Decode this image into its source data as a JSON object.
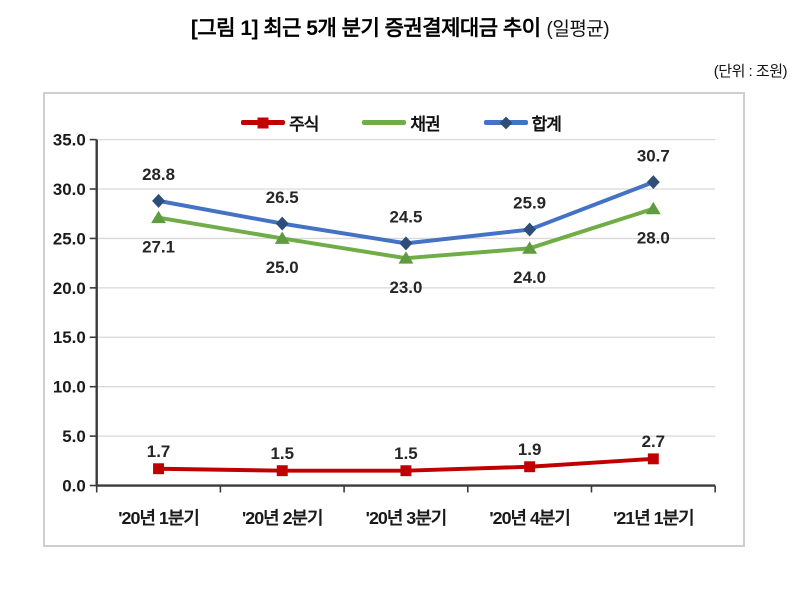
{
  "title": {
    "main": "[그림 1] 최근 5개 분기 증권결제대금 추이",
    "suffix": "(일평균)"
  },
  "unit_label": "(단위 : 조원)",
  "legend": {
    "items": [
      "주식",
      "채권",
      "합계"
    ]
  },
  "chart_data": {
    "type": "line",
    "title": "[그림 1] 최근 5개 분기 증권결제대금 추이 (일평균)",
    "unit": "조원",
    "categories": [
      "'20년 1분기",
      "'20년 2분기",
      "'20년 3분기",
      "'20년 4분기",
      "'21년 1분기"
    ],
    "series": [
      {
        "key": "stocks",
        "name": "주식",
        "values": [
          1.7,
          1.5,
          1.5,
          1.9,
          2.7
        ],
        "color": "#c00000",
        "marker": "square",
        "marker_color": "#c00000",
        "label_position": "above",
        "label_dy": -12,
        "legend_marker": true
      },
      {
        "key": "bonds",
        "name": "채권",
        "values": [
          27.1,
          25.0,
          23.0,
          24.0,
          28.0
        ],
        "color": "#70ad47",
        "marker": "triangle",
        "marker_color": "#5f9c41",
        "label_position": "below",
        "label_dy": 35,
        "legend_marker": false
      },
      {
        "key": "total",
        "name": "합계",
        "values": [
          28.8,
          26.5,
          24.5,
          25.9,
          30.7
        ],
        "color": "#4472c4",
        "marker": "diamond",
        "marker_color": "#2e4d78",
        "label_position": "above",
        "label_dy": -21,
        "legend_marker": true
      }
    ],
    "ylim": [
      0,
      35
    ],
    "ytick_step": 5,
    "grid": true,
    "legend_position": "top-inside",
    "value_label_decimals": 1
  },
  "colors": {
    "grid": "#d9d9d9",
    "axis": "#3a3a3a",
    "tick_label": "#1a1a1a",
    "data_label": "#262626",
    "chart_border": "#cfcfcf"
  }
}
